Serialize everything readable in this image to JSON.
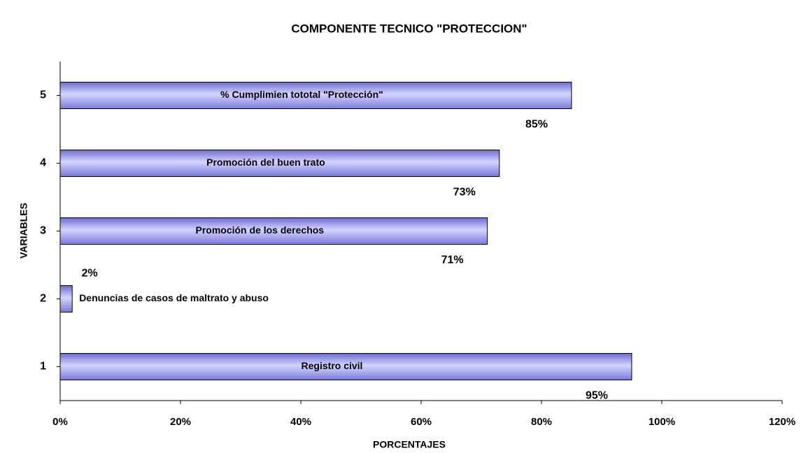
{
  "chart_data": {
    "type": "hbar",
    "title": "COMPONENTE TECNICO \"PROTECCION\"",
    "x_label": "PORCENTAJES",
    "y_label": "VARIABLES",
    "categories": [
      "1",
      "2",
      "3",
      "4",
      "5"
    ],
    "bar_labels": [
      "Registro civil",
      "Denuncias de casos de maltrato y abuso",
      "Promoción de los derechos",
      "Promoción del buen trato",
      "% Cumplimien tototal  \"Protección\""
    ],
    "values": [
      95,
      2,
      71,
      73,
      85
    ],
    "value_labels": [
      "95%",
      "2%",
      "71%",
      "73%",
      "85%"
    ],
    "color": "#9999ff",
    "xlim": [
      0,
      120
    ],
    "xticks": [
      {
        "value": 0,
        "label": "0%"
      },
      {
        "value": 20,
        "label": "20%"
      },
      {
        "value": 40,
        "label": "40%"
      },
      {
        "value": 60,
        "label": "60%"
      },
      {
        "value": 80,
        "label": "80%"
      },
      {
        "value": 100,
        "label": "100%"
      },
      {
        "value": 120,
        "label": "120%"
      }
    ]
  }
}
